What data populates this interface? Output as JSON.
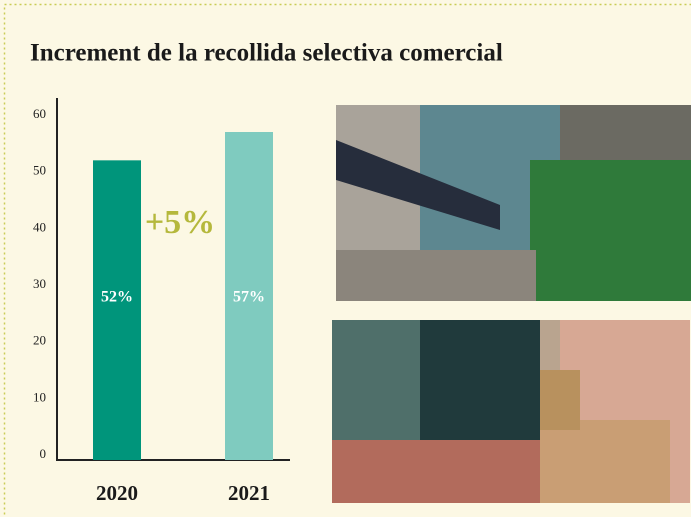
{
  "chart_data": {
    "type": "bar",
    "title": "Increment de la recollida selectiva comercial",
    "categories": [
      "2020",
      "2021"
    ],
    "values": [
      52,
      57
    ],
    "value_labels": [
      "52%",
      "57%"
    ],
    "colors": [
      "#00957b",
      "#7fcbbf"
    ],
    "annotation": "+5%",
    "ylim": [
      0,
      63
    ],
    "yticks": [
      0,
      10,
      20,
      30,
      40,
      50,
      60
    ],
    "grid": false
  }
}
